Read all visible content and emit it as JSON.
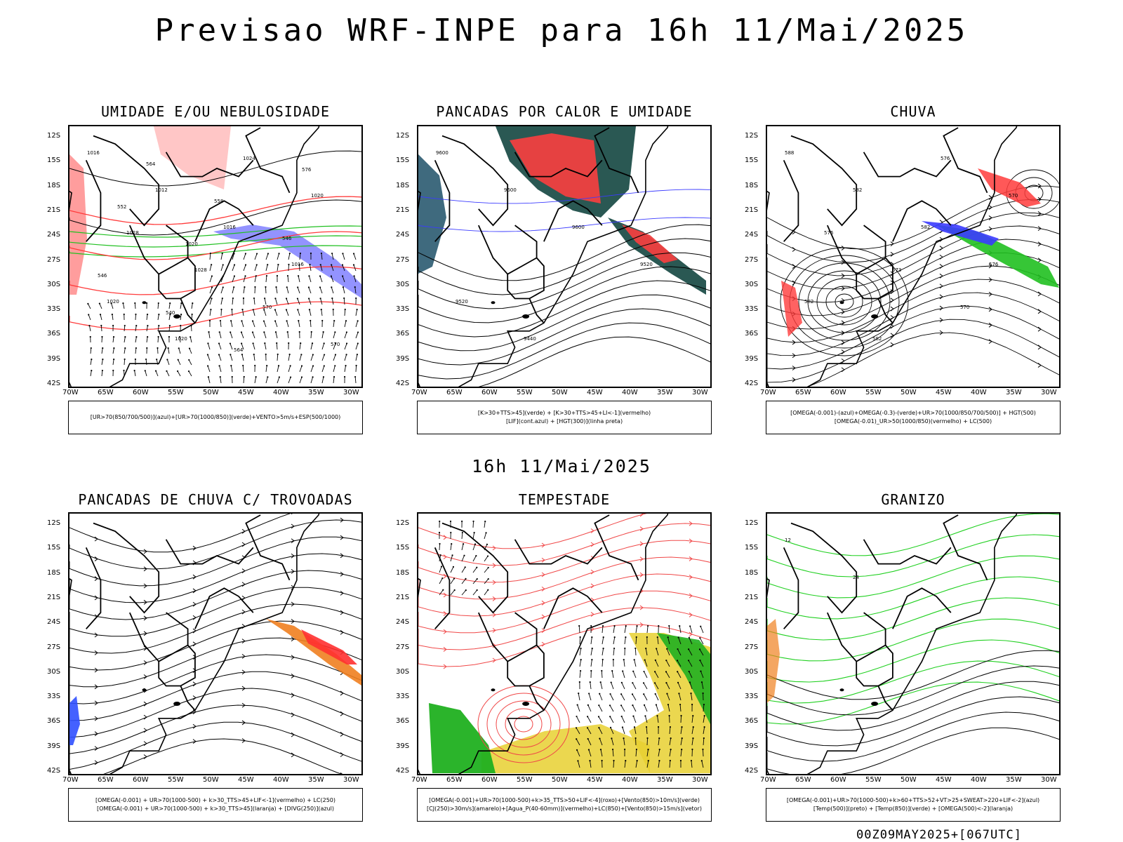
{
  "header": {
    "title": "Previsao WRF-INPE  para 16h 11/Mai/2025"
  },
  "middle_time": "16h 11/Mai/2025",
  "footer": "00Z09MAY2025+[067UTC]",
  "axes": {
    "lat_labels": [
      "12S",
      "15S",
      "18S",
      "21S",
      "24S",
      "27S",
      "30S",
      "33S",
      "36S",
      "39S",
      "42S"
    ],
    "lon_labels": [
      "70W",
      "65W",
      "60W",
      "55W",
      "50W",
      "45W",
      "40W",
      "35W",
      "30W"
    ]
  },
  "panels": [
    {
      "title": "UMIDADE E/OU NEBULOSIDADE",
      "legend": [
        "[UR>70(850/700/500)](azul)+[UR>70(1000/850)](verde)+VENTO>5m/s+ESP(500/1000)"
      ],
      "contour_labels": [
        "1016",
        "1012",
        "1016",
        "1016",
        "1020",
        "1020",
        "1024",
        "1020",
        "1028",
        "1028",
        "570",
        "570",
        "564",
        "558",
        "546",
        "546",
        "540",
        "564",
        "576",
        "552",
        "1020"
      ],
      "colors": {
        "azul": "#3b3bff",
        "verde": "#20c020",
        "vermelho": "#ff3b3b"
      }
    },
    {
      "title": "PANCADAS POR CALOR E UMIDADE",
      "legend": [
        "[K>30+TTS>45](verde) + [K>30+TTS>45+LI<-1](vermelho)",
        "[LIF](cont.azul) + [HGT(300)](linha preta)"
      ],
      "contour_labels": [
        "9600",
        "9600",
        "9600",
        "9520",
        "9520",
        "9440"
      ],
      "colors": {
        "verde": "#1f4f4a",
        "vermelho": "#f04040",
        "azul": "#3b3bff"
      }
    },
    {
      "title": "CHUVA",
      "legend": [
        "[OMEGA(-0.001)-(azul)+OMEGA(-0.3)-(verde)+UR>70(1000/850/700/500)] + HGT(500)",
        "[OMEGA(-0.01)_UR>50(1000/850)(vermelho) + LC(500)"
      ],
      "contour_labels": [
        "588",
        "582",
        "582",
        "576",
        "582",
        "582",
        "576",
        "570",
        "576",
        "573",
        "570"
      ],
      "colors": {
        "azul": "#3b3bff",
        "verde": "#20c020",
        "vermelho": "#ff3b3b"
      }
    },
    {
      "title": "PANCADAS DE CHUVA C/ TROVOADAS",
      "legend": [
        "[OMEGA(-0.001) + UR>70(1000-500) + k>30_TTS>45+LIF<-1](vermelho) + LC(250)",
        "[OMEGA(-0.001) + UR>70(1000-500) + k>30_TTS>45](laranja) + [DIVG(250)](azul)"
      ],
      "contour_labels": [],
      "colors": {
        "vermelho": "#ff3030",
        "laranja": "#f08020",
        "azul": "#3050ff"
      }
    },
    {
      "title": "TEMPESTADE",
      "legend": [
        "[OMEGA(-0.001)+UR>70(1000-500)+k>35_TTS>50+LIF<-4](roxo)+[Vento(850)>10m/s](verde)",
        "[CJ(250)>30m/s](amarelo)+[Agua_P(40-60mm)](vermelho)+LC(850)+[Vento(850)>15m/s](vetor)"
      ],
      "contour_labels": [],
      "colors": {
        "verde": "#20b020",
        "amarelo": "#e8d030",
        "vermelho": "#f04848"
      }
    },
    {
      "title": "GRANIZO",
      "legend": [
        "[OMEGA(-0.001)+UR>70(1000-500)+k>60+TTS>52+VT>25+SWEAT>220+LIF<-2](azul)",
        "[Temp(500)](preto) + [Temp(850)](verde) + [OMEGA(500)<-2](laranja)"
      ],
      "contour_labels": [
        "12",
        "24"
      ],
      "colors": {
        "verde": "#20d020",
        "laranja": "#f08020",
        "preto": "#000000"
      }
    }
  ]
}
